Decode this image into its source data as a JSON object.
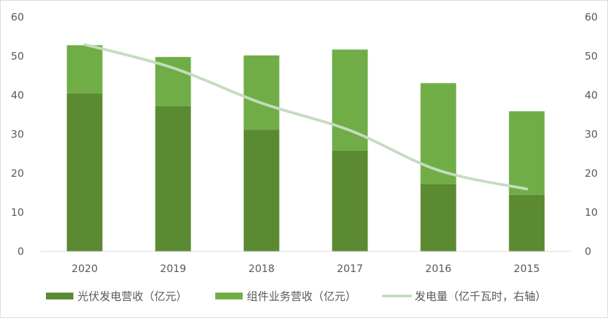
{
  "chart_data": {
    "type": "bar",
    "stacked": true,
    "categories": [
      "2020",
      "2019",
      "2018",
      "2017",
      "2016",
      "2015"
    ],
    "series": [
      {
        "name": "光伏发电营收（亿元）",
        "type": "bar",
        "axis": "left",
        "color": "#5b8a32",
        "values": [
          40.5,
          37.2,
          31.2,
          25.8,
          17.2,
          14.5
        ]
      },
      {
        "name": "组件业务营收（亿元）",
        "type": "bar",
        "axis": "left",
        "color": "#70ad47",
        "values": [
          12.3,
          12.6,
          19.0,
          25.9,
          25.9,
          21.4
        ]
      },
      {
        "name": "发电量（亿千瓦时，右轴）",
        "type": "line",
        "axis": "right",
        "color": "#c5dcc0",
        "values": [
          53.0,
          47.0,
          38.0,
          31.0,
          20.8,
          16.0
        ]
      }
    ],
    "ylim": [
      0,
      60
    ],
    "y2lim": [
      0,
      60
    ],
    "yticks": [
      "0",
      "10",
      "20",
      "30",
      "40",
      "50",
      "60"
    ],
    "y2ticks": [
      "0",
      "10",
      "20",
      "30",
      "40",
      "50",
      "60"
    ],
    "grid": false,
    "legend_position": "bottom"
  }
}
